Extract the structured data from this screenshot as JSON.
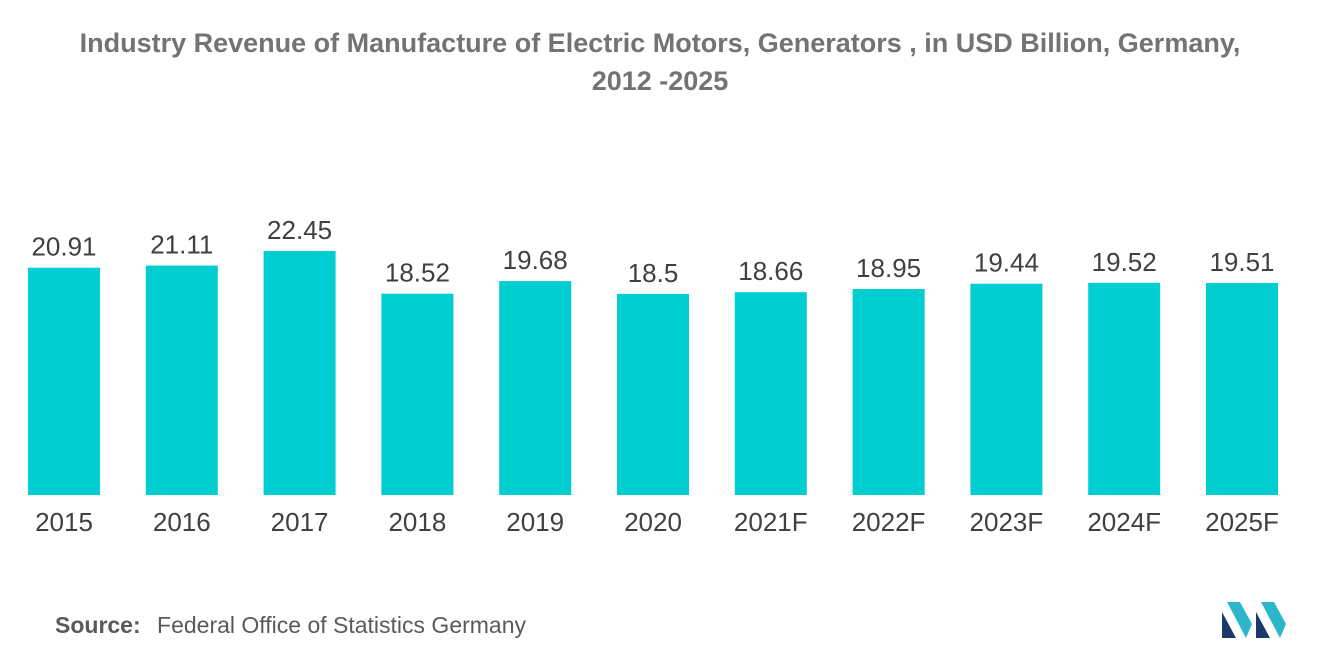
{
  "title_line1": "Industry Revenue of Manufacture of Electric Motors, Generators , in USD Billion, Germany,",
  "title_line2": "2012 -2025",
  "source_label": "Source:",
  "source_text": "Federal Office of Statistics Germany",
  "logo_icon": "mordor-logo-icon",
  "colors": {
    "bar": "#00CED1",
    "text": "#404040",
    "title": "#737373"
  },
  "chart_data": {
    "type": "bar",
    "title": "Industry Revenue of Manufacture of Electric Motors, Generators , in USD Billion, Germany, 2012 -2025",
    "categories": [
      "2015",
      "2016",
      "2017",
      "2018",
      "2019",
      "2020",
      "2021F",
      "2022F",
      "2023F",
      "2024F",
      "2025F"
    ],
    "values": [
      20.91,
      21.11,
      22.45,
      18.52,
      19.68,
      18.5,
      18.66,
      18.95,
      19.44,
      19.52,
      19.51
    ],
    "value_labels": [
      "20.91",
      "21.11",
      "22.45",
      "18.52",
      "19.68",
      "18.5",
      "18.66",
      "18.95",
      "19.44",
      "19.52",
      "19.51"
    ],
    "xlabel": "",
    "ylabel": "",
    "ylim": [
      0,
      22.45
    ],
    "grid": false,
    "legend": "none"
  }
}
